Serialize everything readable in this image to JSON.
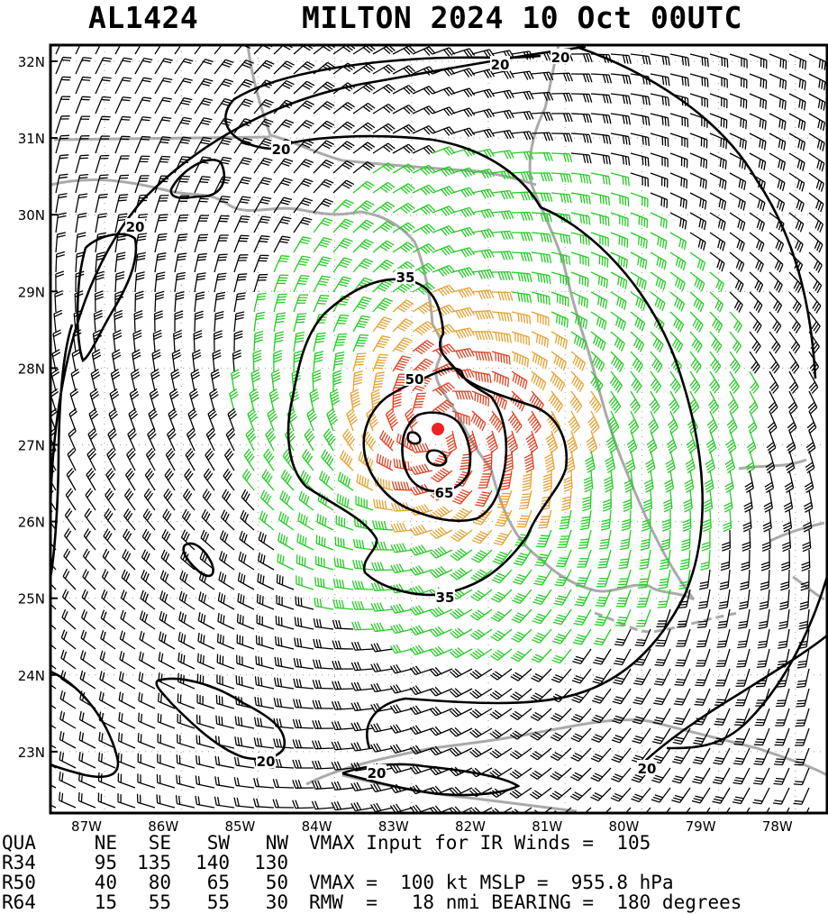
{
  "header": {
    "storm_id": "AL1424",
    "title": "MILTON 2024 10 Oct 00UTC"
  },
  "map": {
    "lat_labels": [
      "32N",
      "31N",
      "30N",
      "29N",
      "28N",
      "27N",
      "26N",
      "25N",
      "24N",
      "23N"
    ],
    "lon_labels": [
      "87W",
      "86W",
      "85W",
      "84W",
      "83W",
      "82W",
      "81W",
      "80W",
      "79W",
      "78W"
    ],
    "contour_labels": [
      "20",
      "20",
      "20",
      "20",
      "20",
      "20",
      "20",
      "35",
      "35",
      "50",
      "65"
    ],
    "barb_colors": {
      "below_34kt": "#000000",
      "34_to_50kt": "#22cc22",
      "50_to_64kt": "#e8a030",
      "above_64kt": "#e04020"
    },
    "center_marker_color": "#ee2222",
    "land_color": "#aaaaaa"
  },
  "wind_table": {
    "columns": [
      "QUA",
      "NE",
      "SE",
      "SW",
      "NW"
    ],
    "rows": [
      {
        "label": "R34",
        "values": [
          "95",
          "135",
          "140",
          "130"
        ]
      },
      {
        "label": "R50",
        "values": [
          "40",
          "80",
          "65",
          "50"
        ]
      },
      {
        "label": "R64",
        "values": [
          "15",
          "55",
          "55",
          "30"
        ]
      }
    ]
  },
  "info": {
    "line1": "VMAX Input for IR Winds =  105",
    "line2": "VMAX =  100 kt MSLP =  955.8 hPa",
    "line3": "RMW  =   18 nmi BEARING =  180 degrees"
  }
}
